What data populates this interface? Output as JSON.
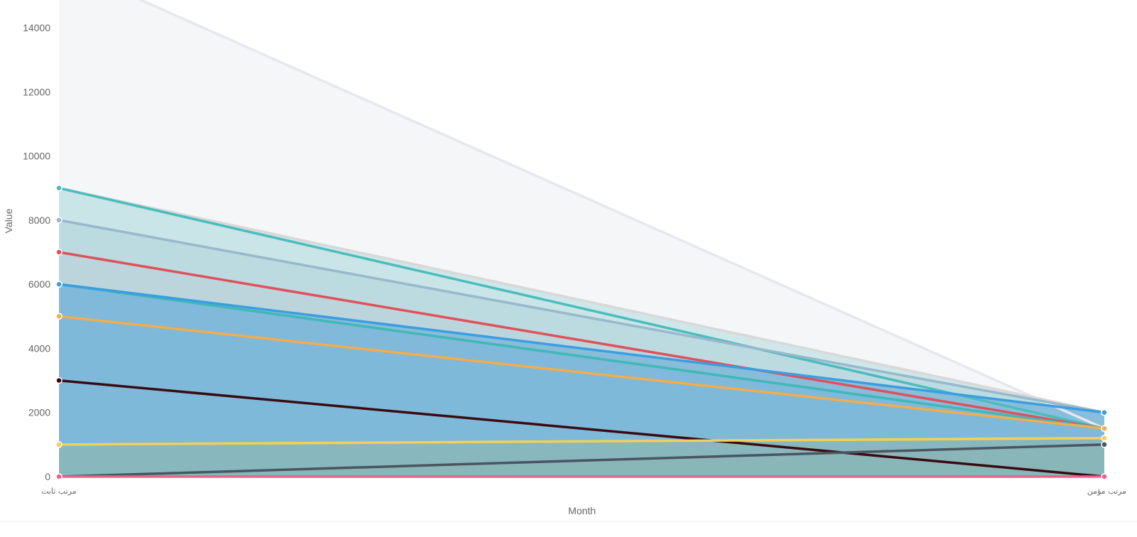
{
  "chart_data": {
    "type": "area",
    "xlabel": "Month",
    "ylabel": "Value",
    "categories": [
      "مرتب ثابت",
      "مرتب مؤمن"
    ],
    "ylim": [
      0,
      14000
    ],
    "yticks": [
      0,
      2000,
      4000,
      6000,
      8000,
      10000,
      12000,
      14000
    ],
    "grid": false,
    "legend": "none",
    "series": [
      {
        "values": [
          16000,
          1500
        ],
        "color": "#e6e8ee",
        "fill": "#f3f4f6"
      },
      {
        "values": [
          9000,
          2000
        ],
        "color": "#d8d8d8",
        "fill": "#c8e4e6"
      },
      {
        "values": [
          9000,
          1500
        ],
        "color": "#4bbcbc",
        "fill": "#c8e4e6"
      },
      {
        "values": [
          8000,
          2000
        ],
        "color": "#98b8cc",
        "fill": "#b8d9df"
      },
      {
        "values": [
          7000,
          1500
        ],
        "color": "#e0505a",
        "fill": "#bcd3da"
      },
      {
        "values": [
          6000,
          1500
        ],
        "color": "#3fb8b8",
        "fill": "#7fb8d8"
      },
      {
        "values": [
          6000,
          2000
        ],
        "color": "#3a9ee0",
        "fill": "#7fb8d8"
      },
      {
        "values": [
          5000,
          1500
        ],
        "color": "#9aa0b8",
        "fill": "#7fb8d8"
      },
      {
        "values": [
          5000,
          1500
        ],
        "color": "#f2ad4c",
        "fill": "#7fb8d8"
      },
      {
        "values": [
          3000,
          0
        ],
        "color": "#3a0a12",
        "fill": "#7fb8d8"
      },
      {
        "values": [
          1000,
          1200
        ],
        "color": "#f5cf55",
        "fill": "#8ab6b8"
      },
      {
        "values": [
          0,
          1000
        ],
        "color": "#4a5560",
        "fill": "#8ab6b8"
      },
      {
        "values": [
          0,
          0
        ],
        "color": "#f0608a",
        "fill": "none"
      }
    ]
  }
}
